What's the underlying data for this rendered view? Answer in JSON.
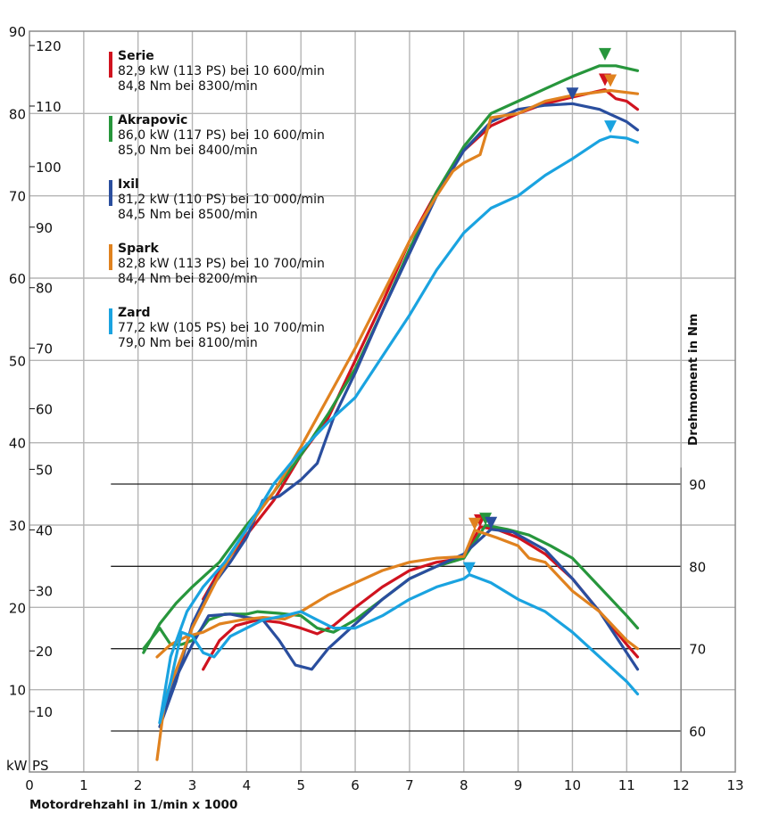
{
  "chart_data": {
    "type": "line",
    "title": "",
    "xlabel": "Motordrehzahl in 1/min x 1000",
    "ylabel_left_primary": "kW",
    "ylabel_left_secondary": "PS",
    "ylabel_right": "Drehmoment in Nm",
    "xlim": [
      0,
      13
    ],
    "x_ticks": [
      "0",
      "1",
      "2",
      "3",
      "4",
      "5",
      "6",
      "7",
      "8",
      "9",
      "10",
      "11",
      "12",
      "13"
    ],
    "ylim_kw": [
      0,
      90
    ],
    "kw_ticks": [
      "10",
      "20",
      "30",
      "40",
      "50",
      "60",
      "70",
      "80",
      "90"
    ],
    "ps_ticks": [
      "10",
      "20",
      "30",
      "40",
      "50",
      "60",
      "70",
      "80",
      "90",
      "100",
      "110",
      "120"
    ],
    "torque_ticks": [
      "60",
      "70",
      "80",
      "90"
    ],
    "torque_range": [
      57,
      92
    ],
    "grid": true,
    "legend_position": "top-left",
    "series": [
      {
        "name": "Serie",
        "color": "#d0131f",
        "line1": "82,9 kW (113 PS) bei 10 600/min",
        "line2": "84,8 Nm bei 8300/min",
        "peak_power": {
          "rpm": 10.6,
          "kw": 82.9
        },
        "peak_torque": {
          "rpm": 8.3,
          "nm": 84.8
        },
        "power": [
          [
            3.2,
            21
          ],
          [
            3.5,
            24.5
          ],
          [
            4,
            28.8
          ],
          [
            4.5,
            33
          ],
          [
            5,
            38.5
          ],
          [
            5.5,
            43
          ],
          [
            6,
            50
          ],
          [
            6.5,
            57
          ],
          [
            7,
            64.5
          ],
          [
            7.5,
            70.5
          ],
          [
            8,
            75.5
          ],
          [
            8.5,
            78.5
          ],
          [
            9,
            80
          ],
          [
            9.5,
            81.2
          ],
          [
            10,
            82
          ],
          [
            10.6,
            82.9
          ],
          [
            10.8,
            81.8
          ],
          [
            11,
            81.5
          ],
          [
            11.2,
            80.5
          ]
        ],
        "torque": [
          [
            3.2,
            67.5
          ],
          [
            3.5,
            71
          ],
          [
            3.8,
            72.8
          ],
          [
            4.2,
            73.5
          ],
          [
            4.6,
            73.2
          ],
          [
            5,
            72.5
          ],
          [
            5.3,
            71.8
          ],
          [
            5.6,
            72.8
          ],
          [
            6,
            75
          ],
          [
            6.5,
            77.5
          ],
          [
            7,
            79.5
          ],
          [
            7.5,
            80.5
          ],
          [
            8,
            81
          ],
          [
            8.3,
            84.8
          ],
          [
            8.6,
            84.5
          ],
          [
            9,
            83.5
          ],
          [
            9.5,
            81.5
          ],
          [
            10,
            78.5
          ],
          [
            10.5,
            74.5
          ],
          [
            11,
            70.5
          ],
          [
            11.2,
            69
          ]
        ]
      },
      {
        "name": "Akrapovic",
        "color": "#27963c",
        "line1": "86,0 kW (117 PS) bei 10 600/min",
        "line2": "85,0 Nm bei 8400/min",
        "peak_power": {
          "rpm": 10.6,
          "kw": 86.0
        },
        "peak_torque": {
          "rpm": 8.4,
          "nm": 85.0
        },
        "power": [
          [
            2.1,
            14.5
          ],
          [
            2.4,
            18
          ],
          [
            2.7,
            20.5
          ],
          [
            3,
            22.5
          ],
          [
            3.5,
            25.5
          ],
          [
            4,
            30
          ],
          [
            4.5,
            34
          ],
          [
            5,
            38.5
          ],
          [
            5.5,
            43.5
          ],
          [
            6,
            49
          ],
          [
            6.5,
            56
          ],
          [
            7,
            63.5
          ],
          [
            7.5,
            70.5
          ],
          [
            8,
            76
          ],
          [
            8.5,
            80
          ],
          [
            9,
            81.5
          ],
          [
            9.5,
            83
          ],
          [
            10,
            84.5
          ],
          [
            10.5,
            85.8
          ],
          [
            10.8,
            85.8
          ],
          [
            11.2,
            85.2
          ]
        ],
        "torque": [
          [
            2.1,
            70
          ],
          [
            2.4,
            72.5
          ],
          [
            2.6,
            70.5
          ],
          [
            2.8,
            70.5
          ],
          [
            3,
            71
          ],
          [
            3.3,
            73.5
          ],
          [
            3.6,
            74.2
          ],
          [
            4,
            74.2
          ],
          [
            4.2,
            74.5
          ],
          [
            4.6,
            74.3
          ],
          [
            5,
            74
          ],
          [
            5.3,
            72.5
          ],
          [
            5.6,
            72
          ],
          [
            6,
            73.5
          ],
          [
            6.5,
            76
          ],
          [
            7,
            78.5
          ],
          [
            7.5,
            80
          ],
          [
            8,
            81
          ],
          [
            8.4,
            85.0
          ],
          [
            8.8,
            84.5
          ],
          [
            9.2,
            83.8
          ],
          [
            9.6,
            82.5
          ],
          [
            10,
            81
          ],
          [
            10.5,
            77.5
          ],
          [
            11,
            74
          ],
          [
            11.2,
            72.5
          ]
        ]
      },
      {
        "name": "Ixil",
        "color": "#2a4e9e",
        "line1": "81,2 kW (110 PS) bei 10 000/min",
        "line2": "84,5 Nm bei 8500/min",
        "peak_power": {
          "rpm": 10.0,
          "kw": 81.2
        },
        "peak_torque": {
          "rpm": 8.5,
          "nm": 84.5
        },
        "power": [
          [
            2.4,
            5.5
          ],
          [
            2.7,
            11
          ],
          [
            3,
            18
          ],
          [
            3.3,
            22
          ],
          [
            3.7,
            25.5
          ],
          [
            4,
            28.5
          ],
          [
            4.3,
            33
          ],
          [
            4.6,
            33.5
          ],
          [
            5,
            35.5
          ],
          [
            5.3,
            37.5
          ],
          [
            5.6,
            43
          ],
          [
            6,
            48.5
          ],
          [
            6.5,
            56
          ],
          [
            7,
            63
          ],
          [
            7.5,
            70
          ],
          [
            8,
            75.5
          ],
          [
            8.5,
            79
          ],
          [
            9,
            80.5
          ],
          [
            9.5,
            81
          ],
          [
            10,
            81.2
          ],
          [
            10.5,
            80.5
          ],
          [
            11,
            79
          ],
          [
            11.2,
            78
          ]
        ],
        "torque": [
          [
            2.4,
            61
          ],
          [
            2.7,
            66.5
          ],
          [
            3,
            70.5
          ],
          [
            3.3,
            74
          ],
          [
            3.7,
            74.2
          ],
          [
            4,
            73.8
          ],
          [
            4.3,
            73.5
          ],
          [
            4.6,
            71
          ],
          [
            4.9,
            68
          ],
          [
            5.2,
            67.5
          ],
          [
            5.5,
            70
          ],
          [
            6,
            73
          ],
          [
            6.5,
            76
          ],
          [
            7,
            78.5
          ],
          [
            7.5,
            80
          ],
          [
            8,
            81.5
          ],
          [
            8.5,
            84.5
          ],
          [
            8.9,
            84.2
          ],
          [
            9.5,
            82
          ],
          [
            10,
            78.5
          ],
          [
            10.5,
            74.5
          ],
          [
            11,
            69.5
          ],
          [
            11.2,
            67.5
          ]
        ]
      },
      {
        "name": "Spark",
        "color": "#e0821f",
        "line1": "82,8 kW (113 PS) bei 10 700/min",
        "line2": "84,4 Nm bei 8200/min",
        "peak_power": {
          "rpm": 10.7,
          "kw": 82.8
        },
        "peak_torque": {
          "rpm": 8.2,
          "nm": 84.4
        },
        "power": [
          [
            2.35,
            1.5
          ],
          [
            2.5,
            9
          ],
          [
            2.8,
            14
          ],
          [
            3,
            17.5
          ],
          [
            3.5,
            24
          ],
          [
            4,
            29.5
          ],
          [
            4.5,
            34
          ],
          [
            5,
            39.5
          ],
          [
            5.5,
            45.5
          ],
          [
            6,
            51.5
          ],
          [
            6.5,
            58
          ],
          [
            7,
            64.5
          ],
          [
            7.5,
            70
          ],
          [
            7.8,
            73
          ],
          [
            8,
            74
          ],
          [
            8.3,
            75
          ],
          [
            8.5,
            79.5
          ],
          [
            9,
            80
          ],
          [
            9.5,
            81.5
          ],
          [
            10,
            82.2
          ],
          [
            10.7,
            82.8
          ],
          [
            11.2,
            82.4
          ]
        ],
        "torque": [
          [
            2.35,
            69
          ],
          [
            2.6,
            70.5
          ],
          [
            2.9,
            71.5
          ],
          [
            3.2,
            72
          ],
          [
            3.5,
            73
          ],
          [
            3.9,
            73.5
          ],
          [
            4.3,
            73.8
          ],
          [
            4.7,
            73.6
          ],
          [
            5,
            74.5
          ],
          [
            5.5,
            76.5
          ],
          [
            6,
            78
          ],
          [
            6.5,
            79.5
          ],
          [
            7,
            80.5
          ],
          [
            7.5,
            81
          ],
          [
            8,
            81.2
          ],
          [
            8.2,
            84.4
          ],
          [
            8.6,
            83.5
          ],
          [
            9,
            82.5
          ],
          [
            9.2,
            81
          ],
          [
            9.5,
            80.5
          ],
          [
            10,
            77
          ],
          [
            10.5,
            74.5
          ],
          [
            11,
            71
          ],
          [
            11.2,
            70
          ]
        ]
      },
      {
        "name": "Zard",
        "color": "#1aa3e0",
        "line1": "77,2 kW (105 PS) bei 10 700/min",
        "line2": "79,0 Nm bei 8100/min",
        "peak_power": {
          "rpm": 10.7,
          "kw": 77.2
        },
        "peak_torque": {
          "rpm": 8.1,
          "nm": 79.0
        },
        "power": [
          [
            2.4,
            6
          ],
          [
            2.6,
            14
          ],
          [
            2.9,
            19.5
          ],
          [
            3.2,
            22.5
          ],
          [
            3.6,
            25.5
          ],
          [
            4,
            29.5
          ],
          [
            4.5,
            35
          ],
          [
            5,
            39
          ],
          [
            5.5,
            42.5
          ],
          [
            6,
            45.5
          ],
          [
            6.5,
            50.5
          ],
          [
            7,
            55.5
          ],
          [
            7.5,
            61
          ],
          [
            8,
            65.5
          ],
          [
            8.5,
            68.5
          ],
          [
            9,
            70
          ],
          [
            9.5,
            72.5
          ],
          [
            10,
            74.5
          ],
          [
            10.5,
            76.7
          ],
          [
            10.7,
            77.2
          ],
          [
            11,
            77
          ],
          [
            11.2,
            76.5
          ]
        ],
        "torque": [
          [
            2.4,
            61
          ],
          [
            2.6,
            66
          ],
          [
            2.8,
            72
          ],
          [
            3,
            71.5
          ],
          [
            3.2,
            69.5
          ],
          [
            3.4,
            69
          ],
          [
            3.7,
            71.5
          ],
          [
            4,
            72.5
          ],
          [
            4.3,
            73.5
          ],
          [
            4.7,
            74
          ],
          [
            5,
            74.5
          ],
          [
            5.3,
            73.5
          ],
          [
            5.6,
            72.5
          ],
          [
            6,
            72.5
          ],
          [
            6.5,
            74
          ],
          [
            7,
            76
          ],
          [
            7.5,
            77.5
          ],
          [
            8,
            78.5
          ],
          [
            8.1,
            79
          ],
          [
            8.5,
            78
          ],
          [
            9,
            76
          ],
          [
            9.5,
            74.5
          ],
          [
            10,
            72
          ],
          [
            10.5,
            69
          ],
          [
            11,
            66
          ],
          [
            11.2,
            64.5
          ]
        ]
      }
    ]
  }
}
